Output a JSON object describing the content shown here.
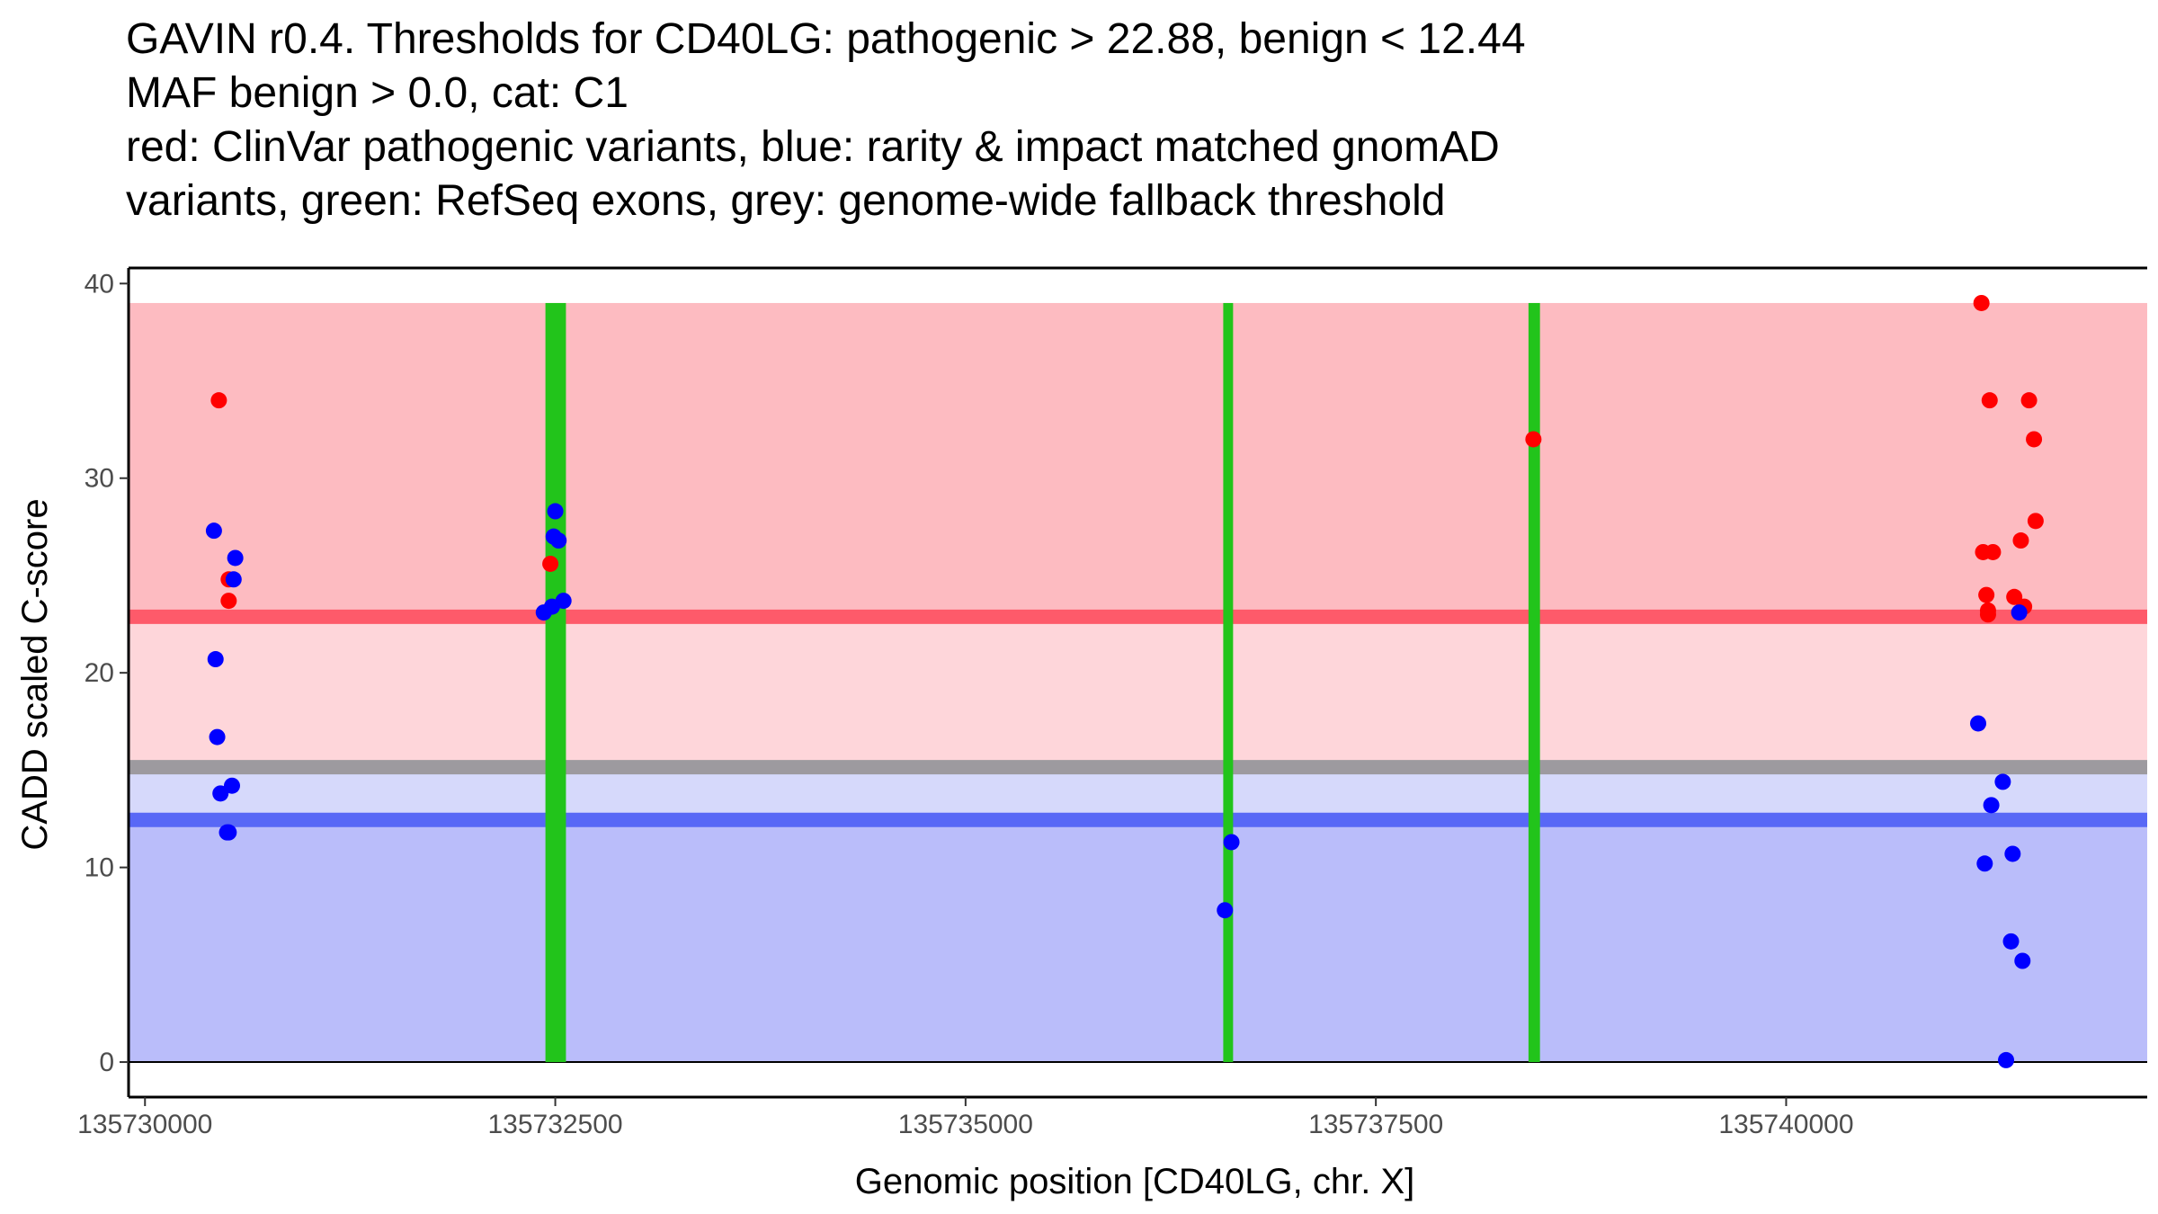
{
  "chart_data": {
    "type": "scatter",
    "title": [
      "GAVIN r0.4. Thresholds for CD40LG: pathogenic > 22.88, benign < 12.44",
      "MAF benign > 0.0, cat: C1",
      "red: ClinVar pathogenic variants, blue: rarity & impact matched gnomAD",
      "variants, green: RefSeq exons, grey: genome-wide fallback threshold"
    ],
    "xlabel": "Genomic position [CD40LG, chr. X]",
    "ylabel": "CADD scaled C-score",
    "xlim": [
      135729900,
      135742200
    ],
    "ylim": [
      -1.8,
      40.8
    ],
    "x_ticks": [
      135730000,
      135732500,
      135735000,
      135737500,
      135740000
    ],
    "x_tick_labels": [
      "135730000",
      "135732500",
      "135735000",
      "135737500",
      "135740000"
    ],
    "y_ticks": [
      0,
      10,
      20,
      30,
      40
    ],
    "y_tick_labels": [
      "0",
      "10",
      "20",
      "30",
      "40"
    ],
    "colors": {
      "pathogenic_zone": "#fdbbc1",
      "pathogenic_line": "#fe5a6a",
      "mid_pathogenic": "#fed6da",
      "mid_benign": "#d6d9fb",
      "benign_zone": "#babdfa",
      "benign_line": "#5868f6",
      "fallback_line": "#9d9a9f",
      "exon": "#22c41b",
      "pathogenic_point": "#ff0000",
      "benign_point": "#0000ff"
    },
    "thresholds": {
      "pathogenic": 22.88,
      "benign": 12.44,
      "fallback": 15.15,
      "zone_top": 39
    },
    "exons": [
      {
        "start": 135732440,
        "end": 135732565
      },
      {
        "start": 135736570,
        "end": 135736630
      },
      {
        "start": 135738430,
        "end": 135738500
      }
    ],
    "series": [
      {
        "name": "ClinVar pathogenic",
        "color": "#ff0000",
        "points": [
          [
            135730450,
            34.0
          ],
          [
            135730510,
            24.8
          ],
          [
            135730510,
            23.7
          ],
          [
            135732470,
            25.6
          ],
          [
            135738460,
            32.0
          ],
          [
            135741190,
            39.0
          ],
          [
            135741200,
            26.2
          ],
          [
            135741260,
            26.2
          ],
          [
            135741220,
            24.0
          ],
          [
            135741230,
            23.2
          ],
          [
            135741230,
            23.0
          ],
          [
            135741240,
            34.0
          ],
          [
            135741390,
            23.9
          ],
          [
            135741450,
            23.4
          ],
          [
            135741430,
            26.8
          ],
          [
            135741480,
            34.0
          ],
          [
            135741510,
            32.0
          ],
          [
            135741520,
            27.8
          ]
        ]
      },
      {
        "name": "gnomAD matched",
        "color": "#0000ff",
        "points": [
          [
            135730420,
            27.3
          ],
          [
            135730430,
            20.7
          ],
          [
            135730440,
            16.7
          ],
          [
            135730460,
            13.8
          ],
          [
            135730540,
            24.8
          ],
          [
            135730550,
            25.9
          ],
          [
            135730530,
            14.2
          ],
          [
            135730510,
            11.8
          ],
          [
            135730500,
            11.8
          ],
          [
            135732430,
            23.1
          ],
          [
            135732480,
            23.4
          ],
          [
            135732490,
            27.0
          ],
          [
            135732500,
            28.3
          ],
          [
            135732520,
            26.8
          ],
          [
            135732550,
            23.7
          ],
          [
            135736620,
            11.3
          ],
          [
            135736580,
            7.8
          ],
          [
            135741170,
            17.4
          ],
          [
            135741210,
            10.2
          ],
          [
            135741250,
            13.2
          ],
          [
            135741320,
            14.4
          ],
          [
            135741380,
            10.7
          ],
          [
            135741370,
            6.2
          ],
          [
            135741420,
            23.1
          ],
          [
            135741440,
            5.2
          ],
          [
            135741340,
            0.1
          ]
        ]
      }
    ]
  }
}
